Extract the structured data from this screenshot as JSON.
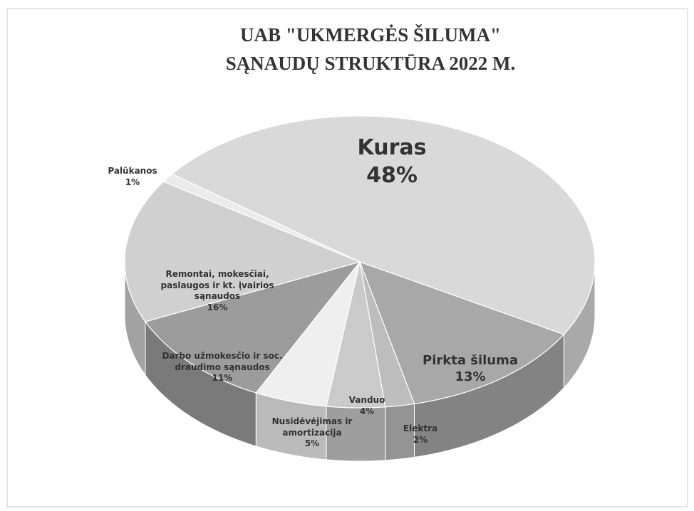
{
  "chart_data": {
    "type": "pie",
    "title": [
      "UAB \"UKMERGĖS ŠILUMA\"",
      "SĄNAUDŲ STRUKTŪRA 2022 M."
    ],
    "categories": [
      "Kuras",
      "Pirkta šiluma",
      "Elektra",
      "Vanduo",
      "Nusidėvėjimas ir amortizacija",
      "Darbo užmokesčio ir soc. draudimo sąnaudos",
      "Remontai, mokesčiai, paslaugos ir kt. įvairios sąnaudos",
      "Palūkanos"
    ],
    "values": [
      48,
      13,
      2,
      4,
      5,
      11,
      16,
      1
    ],
    "value_labels": [
      "48%",
      "13%",
      "2%",
      "4%",
      "5%",
      "11%",
      "16%",
      "1%"
    ],
    "colors": [
      "#d9d9d9",
      "#a8a8a8",
      "#bdbdbd",
      "#cacaca",
      "#efefef",
      "#9c9c9c",
      "#d0d0d0",
      "#ebebeb"
    ]
  }
}
